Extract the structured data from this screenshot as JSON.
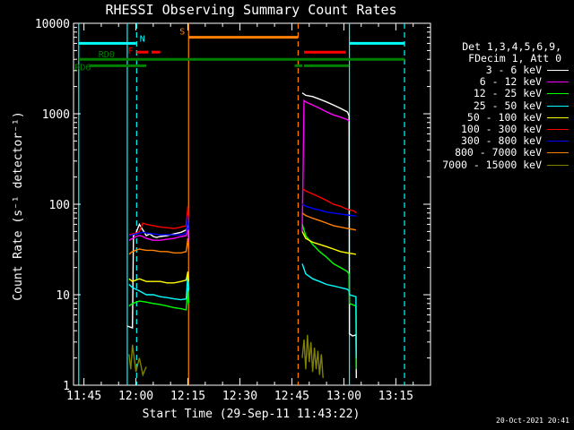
{
  "chart_data": {
    "type": "line",
    "title": "RHESSI Observing Summary Count Rates",
    "xlabel": "Start Time (29-Sep-11 11:43:22)",
    "ylabel": "Count Rate (s⁻¹ detector⁻¹)",
    "yscale": "log",
    "ylim": [
      1,
      10000
    ],
    "xlim_min": [
      -2,
      20
    ],
    "x_ticks": [
      {
        "t": 0,
        "label": "11:45"
      },
      {
        "t": 15,
        "label": "12:00"
      },
      {
        "t": 30,
        "label": "12:15"
      },
      {
        "t": 45,
        "label": "12:30"
      },
      {
        "t": 60,
        "label": "12:45"
      },
      {
        "t": 75,
        "label": "13:00"
      },
      {
        "t": 90,
        "label": "13:15"
      }
    ],
    "xlim": [
      -3,
      100
    ],
    "y_ticks": [
      {
        "v": 1,
        "label": "1"
      },
      {
        "v": 10,
        "label": "10"
      },
      {
        "v": 100,
        "label": "100"
      },
      {
        "v": 1000,
        "label": "1000"
      },
      {
        "v": 10000,
        "label": "10000"
      }
    ],
    "series": [
      {
        "name": "3 - 6 keV",
        "color": "#ffffff",
        "segments": [
          [
            [
              12.5,
              4.5
            ],
            [
              14,
              4.3
            ],
            [
              14.3,
              45
            ],
            [
              15,
              48
            ],
            [
              16,
              60
            ],
            [
              17,
              52
            ],
            [
              18,
              45
            ],
            [
              19,
              47
            ],
            [
              20,
              44
            ],
            [
              21,
              43
            ],
            [
              22,
              44
            ],
            [
              24,
              45
            ],
            [
              26,
              47
            ],
            [
              28,
              49
            ],
            [
              29.5,
              52
            ],
            [
              30,
              63
            ],
            [
              30.2,
              40
            ]
          ],
          [
            [
              63,
              1700
            ],
            [
              64,
              1600
            ],
            [
              66,
              1550
            ],
            [
              68,
              1450
            ],
            [
              70,
              1350
            ],
            [
              72,
              1250
            ],
            [
              74,
              1150
            ],
            [
              76,
              1050
            ],
            [
              76.5,
              950
            ],
            [
              76.6,
              3.7
            ],
            [
              77.5,
              3.5
            ],
            [
              78.5,
              3.6
            ],
            [
              78.6,
              1.2
            ]
          ]
        ]
      },
      {
        "name": "6 - 12 keV",
        "color": "#ff00ff",
        "segments": [
          [
            [
              13,
              40
            ],
            [
              14,
              42
            ],
            [
              15,
              44
            ],
            [
              16,
              45
            ],
            [
              17,
              44
            ],
            [
              18,
              42
            ],
            [
              20,
              40
            ],
            [
              22,
              40
            ],
            [
              24,
              41
            ],
            [
              26,
              42
            ],
            [
              28,
              44
            ],
            [
              29.5,
              45
            ],
            [
              30,
              55
            ],
            [
              30.2,
              38
            ]
          ],
          [
            [
              63,
              50
            ],
            [
              63.5,
              1400
            ],
            [
              64,
              1350
            ],
            [
              66,
              1250
            ],
            [
              68,
              1150
            ],
            [
              70,
              1050
            ],
            [
              72,
              970
            ],
            [
              74,
              920
            ],
            [
              76,
              860
            ],
            [
              76.5,
              830
            ]
          ]
        ]
      },
      {
        "name": "12 - 25 keV",
        "color": "#00ff00",
        "segments": [
          [
            [
              13,
              7.5
            ],
            [
              14,
              8
            ],
            [
              16,
              8.5
            ],
            [
              18,
              8.3
            ],
            [
              20,
              8
            ],
            [
              22,
              7.8
            ],
            [
              24,
              7.5
            ],
            [
              26,
              7.2
            ],
            [
              28,
              7
            ],
            [
              29.5,
              6.8
            ],
            [
              30,
              12
            ],
            [
              30.2,
              8
            ]
          ],
          [
            [
              63,
              60
            ],
            [
              64,
              45
            ],
            [
              66,
              36
            ],
            [
              68,
              30
            ],
            [
              70,
              26
            ],
            [
              72,
              22
            ],
            [
              74,
              20
            ],
            [
              76,
              18
            ],
            [
              76.5,
              17
            ],
            [
              76.6,
              8
            ],
            [
              78.5,
              7.5
            ],
            [
              78.6,
              1.5
            ]
          ]
        ]
      },
      {
        "name": "25 - 50 keV",
        "color": "#00ffff",
        "segments": [
          [
            [
              13,
              13
            ],
            [
              14,
              12
            ],
            [
              16,
              11
            ],
            [
              18,
              10
            ],
            [
              20,
              10
            ],
            [
              22,
              9.5
            ],
            [
              24,
              9.3
            ],
            [
              26,
              9
            ],
            [
              28,
              8.8
            ],
            [
              29.5,
              9
            ],
            [
              30,
              17
            ],
            [
              30.2,
              11
            ]
          ],
          [
            [
              63,
              22
            ],
            [
              64,
              17
            ],
            [
              66,
              15
            ],
            [
              68,
              14
            ],
            [
              70,
              13
            ],
            [
              72,
              12.5
            ],
            [
              74,
              12
            ],
            [
              76,
              11.5
            ],
            [
              76.5,
              11
            ],
            [
              76.6,
              10
            ],
            [
              78.5,
              9.5
            ],
            [
              78.6,
              2
            ]
          ]
        ]
      },
      {
        "name": "50 - 100 keV",
        "color": "#ffff00",
        "segments": [
          [
            [
              13,
              15
            ],
            [
              14,
              14
            ],
            [
              16,
              15
            ],
            [
              18,
              14
            ],
            [
              20,
              14
            ],
            [
              22,
              14
            ],
            [
              24,
              13.5
            ],
            [
              26,
              13.5
            ],
            [
              28,
              14
            ],
            [
              29.5,
              14.5
            ],
            [
              30,
              18
            ],
            [
              30.2,
              14
            ]
          ],
          [
            [
              63,
              50
            ],
            [
              64,
              42
            ],
            [
              66,
              38
            ],
            [
              68,
              36
            ],
            [
              70,
              34
            ],
            [
              72,
              32
            ],
            [
              74,
              30
            ],
            [
              76,
              29
            ],
            [
              78.5,
              28
            ]
          ]
        ]
      },
      {
        "name": "100 - 300 keV",
        "color": "#ff0000",
        "segments": [
          [
            [
              13,
              46
            ],
            [
              14,
              47
            ],
            [
              15,
              48
            ],
            [
              16,
              50
            ],
            [
              17,
              62
            ],
            [
              18,
              60
            ],
            [
              20,
              58
            ],
            [
              22,
              56
            ],
            [
              24,
              55
            ],
            [
              26,
              54
            ],
            [
              28,
              56
            ],
            [
              29.5,
              58
            ],
            [
              30,
              95
            ],
            [
              30.2,
              70
            ]
          ],
          [
            [
              63,
              150
            ],
            [
              64,
              140
            ],
            [
              66,
              130
            ],
            [
              68,
              120
            ],
            [
              70,
              110
            ],
            [
              72,
              100
            ],
            [
              74,
              95
            ],
            [
              76,
              88
            ],
            [
              78,
              84
            ],
            [
              78.6,
              80
            ]
          ]
        ]
      },
      {
        "name": "300 - 800 keV",
        "color": "#0000ff",
        "segments": [
          [
            [
              13,
              45
            ],
            [
              14,
              46
            ],
            [
              15,
              47
            ],
            [
              16,
              48
            ],
            [
              17,
              49
            ],
            [
              18,
              48
            ],
            [
              20,
              47
            ],
            [
              22,
              46
            ],
            [
              24,
              46
            ],
            [
              26,
              46
            ],
            [
              28,
              46
            ],
            [
              29.5,
              48
            ],
            [
              30,
              75
            ],
            [
              30.2,
              52
            ]
          ],
          [
            [
              63,
              100
            ],
            [
              64,
              95
            ],
            [
              66,
              90
            ],
            [
              68,
              86
            ],
            [
              70,
              82
            ],
            [
              72,
              80
            ],
            [
              74,
              78
            ],
            [
              76,
              76
            ],
            [
              78.5,
              74
            ]
          ]
        ]
      },
      {
        "name": "800 - 7000 keV",
        "color": "#ff8000",
        "segments": [
          [
            [
              13,
              28
            ],
            [
              14,
              30
            ],
            [
              16,
              32
            ],
            [
              18,
              31
            ],
            [
              20,
              31
            ],
            [
              22,
              30
            ],
            [
              24,
              30
            ],
            [
              26,
              29
            ],
            [
              28,
              29
            ],
            [
              29.5,
              30
            ],
            [
              30,
              42
            ],
            [
              30.2,
              32
            ]
          ],
          [
            [
              63,
              80
            ],
            [
              64,
              75
            ],
            [
              66,
              70
            ],
            [
              68,
              66
            ],
            [
              70,
              62
            ],
            [
              72,
              58
            ],
            [
              74,
              56
            ],
            [
              76,
              54
            ],
            [
              78.5,
              52
            ]
          ]
        ]
      },
      {
        "name": "7000 - 15000 keV",
        "color": "#808000",
        "segments": [
          [
            [
              13,
              2.2
            ],
            [
              13.5,
              1.5
            ],
            [
              14,
              2.8
            ],
            [
              15,
              1.4
            ],
            [
              16,
              2
            ],
            [
              17,
              1.3
            ],
            [
              18,
              1.6
            ]
          ],
          [
            [
              63,
              2
            ],
            [
              63.5,
              3.2
            ],
            [
              64,
              1.5
            ],
            [
              64.5,
              3.6
            ],
            [
              65,
              1.8
            ],
            [
              65.5,
              3
            ],
            [
              66,
              1.4
            ],
            [
              66.5,
              2.6
            ],
            [
              67,
              1.5
            ],
            [
              67.5,
              2.4
            ],
            [
              68,
              1.3
            ],
            [
              68.5,
              2.2
            ],
            [
              69,
              1.2
            ]
          ]
        ]
      }
    ],
    "vlines": [
      {
        "t": -1.5,
        "color": "#00ffff",
        "style": "solid"
      },
      {
        "t": 12.5,
        "color": "#00ffff",
        "style": "solid"
      },
      {
        "t": 15.2,
        "color": "#00ffff",
        "style": "dash"
      },
      {
        "t": 30.2,
        "color": "#ff8000",
        "style": "solid"
      },
      {
        "t": 61.8,
        "color": "#ff8000",
        "style": "dash"
      },
      {
        "t": 76.6,
        "color": "#00ffff",
        "style": "solid"
      },
      {
        "t": 92.5,
        "color": "#00ffff",
        "style": "dash"
      }
    ],
    "bars": [
      {
        "label": "N",
        "color": "#00ffff",
        "y": 6000,
        "spans": [
          [
            -1.5,
            15
          ],
          [
            76.6,
            92.5
          ]
        ]
      },
      {
        "label": "S",
        "color": "#ff8000",
        "y": 7000,
        "spans": [
          [
            30.2,
            61.8
          ]
        ]
      },
      {
        "label": "F",
        "color": "#ff0000",
        "y": 4800,
        "spans": [
          [
            15.2,
            18.5
          ],
          [
            19.5,
            22
          ],
          [
            63.5,
            75.5
          ]
        ]
      },
      {
        "label": "RD0",
        "color": "#008000",
        "y": 4000,
        "spans": [
          [
            -1.5,
            92.5
          ]
        ]
      },
      {
        "label": "RD6",
        "color": "#008000",
        "y": 3400,
        "spans": [
          [
            1.5,
            18
          ],
          [
            60.8,
            63
          ],
          [
            63.5,
            76.5
          ]
        ]
      }
    ],
    "legend_header": [
      "Det 1,3,4,5,6,9,",
      "FDecim 1, Att 0"
    ]
  },
  "generated": "20-Oct-2021 20:41"
}
